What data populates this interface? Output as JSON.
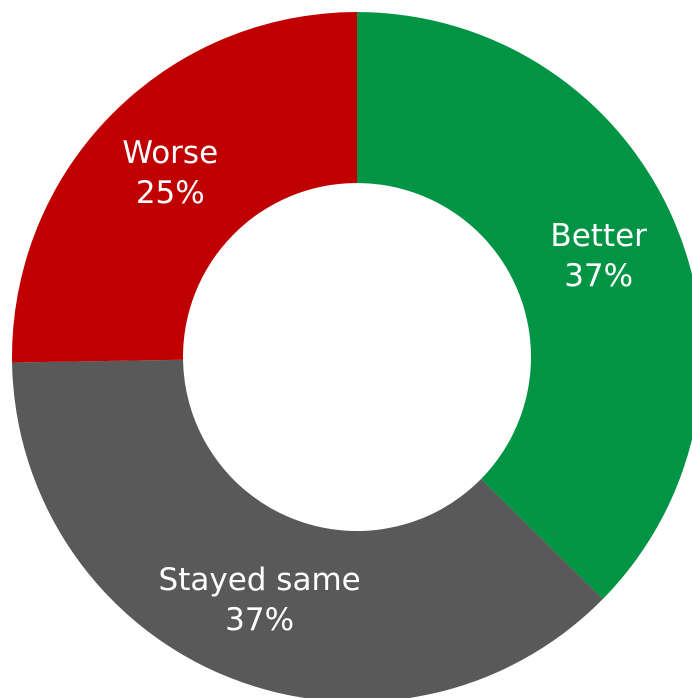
{
  "chart_data": {
    "type": "pie",
    "variant": "donut",
    "title": "",
    "start_angle_deg": 0,
    "direction": "clockwise",
    "slices": [
      {
        "name": "Better",
        "value": 37,
        "value_label": "37%",
        "color": "#009444"
      },
      {
        "name": "Stayed same",
        "value": 37,
        "value_label": "37%",
        "color": "#595959"
      },
      {
        "name": "Worse",
        "value": 25,
        "value_label": "25%",
        "color": "#C00000"
      }
    ],
    "legend": "none",
    "data_labels": "inside",
    "label_color": "#FFFFFF"
  }
}
